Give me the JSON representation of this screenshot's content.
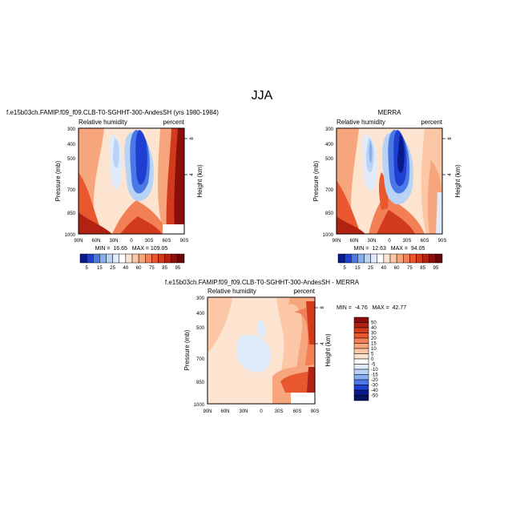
{
  "figure": {
    "title": "JJA"
  },
  "panels": [
    {
      "heading": "f.e15b03ch.FAMIP.f09_f09.CLB-T0-SGHHT-300-AndesSH (yrs 1980-1984)",
      "left_label": "Relative humidity",
      "right_label": "percent",
      "stats": "MIN =  16.65   MAX = 109.05"
    },
    {
      "heading": "MERRA",
      "left_label": "Relative humidity",
      "right_label": "percent",
      "stats": "MIN =  12.63   MAX =  94.05"
    },
    {
      "heading": "f.e15b03ch.FAMIP.f09_f09.CLB-T0-SGHHT-300-AndesSH - MERRA",
      "left_label": "Relative humidity",
      "right_label": "percent",
      "stats": "MIN =  -4.76   MAX =  42.77"
    }
  ],
  "axes": {
    "ylabel": "Pressure (mb)",
    "y2label": "Height (km)",
    "pressure_ticks": [
      "300",
      "400",
      "500",
      "700",
      "850",
      "1000"
    ],
    "lat_ticks": [
      "90N",
      "60N",
      "30N",
      "0",
      "30S",
      "60S",
      "90S"
    ],
    "height_ticks": [
      "8",
      "4"
    ]
  },
  "colorbars": {
    "rh_labels": [
      "5",
      "15",
      "25",
      "40",
      "60",
      "75",
      "85",
      "95"
    ],
    "rh_colors": [
      "#0a1a8c",
      "#1e3fcf",
      "#4a78e6",
      "#86aef0",
      "#b9d3f6",
      "#dfeafb",
      "#ffffff",
      "#fde4d0",
      "#fbc7a6",
      "#f7a57c",
      "#f27f56",
      "#e9572f",
      "#d13a1c",
      "#b22212",
      "#8c0e0a",
      "#6a0606"
    ],
    "diff_labels": [
      "50",
      "40",
      "30",
      "20",
      "15",
      "10",
      "5",
      "0",
      "-5",
      "-10",
      "-15",
      "-20",
      "-30",
      "-40",
      "-50"
    ],
    "diff_colors": [
      "#8c0e0a",
      "#b22212",
      "#d13a1c",
      "#e9572f",
      "#f27f56",
      "#f7a57c",
      "#fbc7a6",
      "#fde4d0",
      "#ffffff",
      "#dfeafb",
      "#b9d3f6",
      "#86aef0",
      "#4a78e6",
      "#1e3fcf",
      "#0a1a8c",
      "#06125e"
    ]
  }
}
